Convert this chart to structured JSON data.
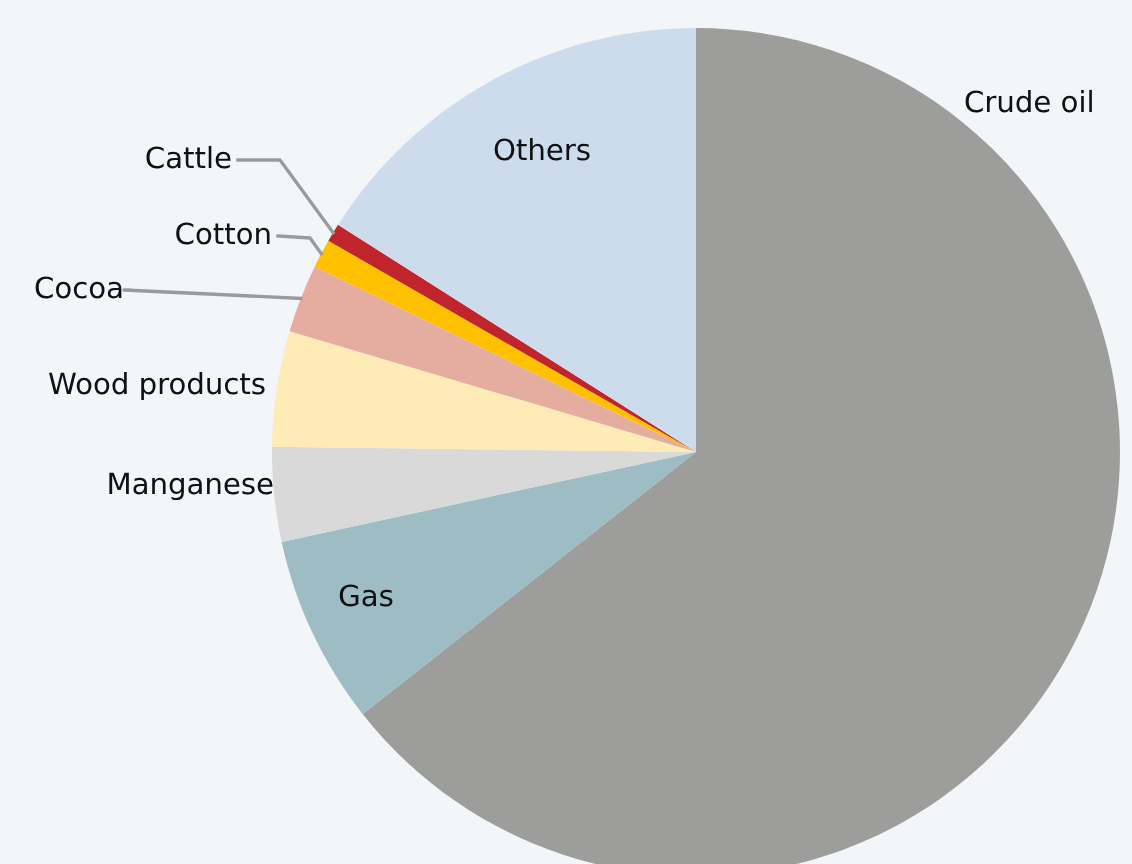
{
  "chart_data": {
    "type": "pie",
    "categories": [
      "Crude oil",
      "Gas",
      "Manganese",
      "Wood products",
      "Cocoa",
      "Cotton",
      "Cattle",
      "Others"
    ],
    "values": [
      64.4,
      7.2,
      3.6,
      4.4,
      2.6,
      1.1,
      0.7,
      16.0
    ],
    "colors": [
      "#9d9d9b",
      "#9dbcc4",
      "#d9d9d9",
      "#feebb5",
      "#e5ada0",
      "#ffc000",
      "#c0242c",
      "#cddcec"
    ]
  }
}
